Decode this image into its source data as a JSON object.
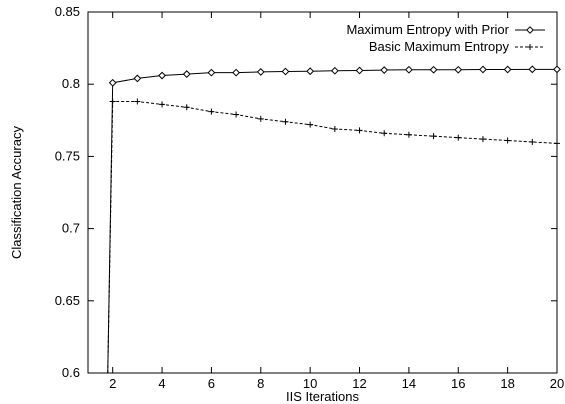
{
  "chart_data": {
    "type": "line",
    "title": "",
    "xlabel": "IIS Iterations",
    "ylabel": "Classification Accuracy",
    "xlim": [
      1,
      20
    ],
    "ylim": [
      0.6,
      0.85
    ],
    "grid": false,
    "legend_position": "top-right",
    "x_ticks": [
      2,
      4,
      6,
      8,
      10,
      12,
      14,
      16,
      18,
      20
    ],
    "x_tick_labels": [
      "2",
      "4",
      "6",
      "8",
      "10",
      "12",
      "14",
      "16",
      "18",
      "20"
    ],
    "y_ticks": [
      0.6,
      0.65,
      0.7,
      0.75,
      0.8,
      0.85
    ],
    "y_tick_labels": [
      "0.6",
      "0.65",
      "0.7",
      "0.75",
      "0.8",
      "0.85"
    ],
    "series": [
      {
        "name": "Maximum Entropy with Prior",
        "marker": "diamond",
        "line_style": "solid",
        "x": [
          1.8,
          2,
          3,
          4,
          5,
          6,
          7,
          8,
          9,
          10,
          11,
          12,
          13,
          14,
          15,
          16,
          17,
          18,
          19,
          20
        ],
        "y": [
          0.6,
          0.801,
          0.804,
          0.806,
          0.807,
          0.808,
          0.808,
          0.8085,
          0.8088,
          0.809,
          0.8093,
          0.8095,
          0.8098,
          0.81,
          0.81,
          0.81,
          0.8102,
          0.8102,
          0.8103,
          0.8103
        ]
      },
      {
        "name": "Basic Maximum Entropy",
        "marker": "plus",
        "line_style": "dashed",
        "x": [
          1.8,
          2,
          3,
          4,
          5,
          6,
          7,
          8,
          9,
          10,
          11,
          12,
          13,
          14,
          15,
          16,
          17,
          18,
          19,
          20
        ],
        "y": [
          0.6,
          0.788,
          0.788,
          0.786,
          0.784,
          0.781,
          0.779,
          0.776,
          0.774,
          0.772,
          0.769,
          0.768,
          0.766,
          0.765,
          0.764,
          0.763,
          0.762,
          0.761,
          0.76,
          0.759
        ]
      }
    ]
  }
}
